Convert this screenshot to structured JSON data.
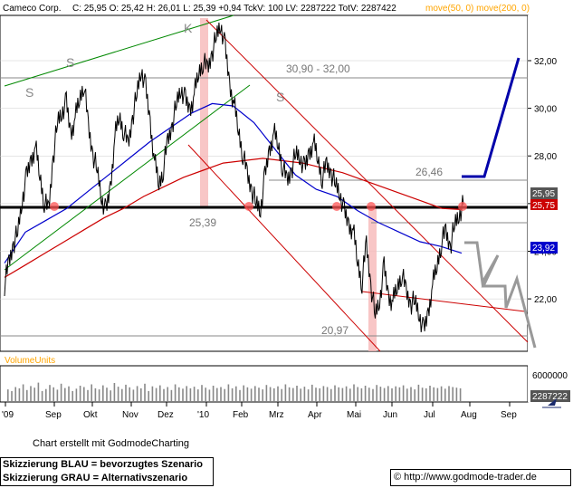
{
  "header": {
    "symbol": "Cameco Corp.",
    "ohlc": "C: 25,95 O: 25,42 H: 26,01 L: 25,39 +0,94 TckV: 100 LV: 2287222 TotV: 2287422",
    "ma_label": "move(50, 0) move(200, 0)"
  },
  "annotations": {
    "zone_top": "30,90 - 32,00",
    "level_2646": "26,46",
    "level_2539": "25,39",
    "level_2097": "20,97",
    "pattern_s1": "S",
    "pattern_s2": "S",
    "pattern_k": "K",
    "pattern_s3": "S"
  },
  "badges": {
    "price_current": "25,95",
    "price_hidden": "25,75",
    "ma50": "23,92"
  },
  "volume": {
    "label": "VolumeUnits",
    "axis_max": "6000000",
    "current": "2287222"
  },
  "footer": {
    "credit": "Chart erstellt mit GodmodeCharting",
    "legend_blue": "Skizzierung BLAU = bevorzugtes Szenario",
    "legend_gray": "Skizzierung GRAU = Alternativszenario",
    "url": "© http://www.godmode-trader.de"
  },
  "colors": {
    "price": "#000000",
    "ma50": "#0000cc",
    "ma200": "#cc0000",
    "channel_upper": "#008800",
    "scenario_blue": "#0000aa",
    "scenario_gray": "#999999",
    "header_ma": "#ffa500",
    "volume_label": "#ffa500"
  },
  "chart_data": {
    "type": "line",
    "title": "",
    "price_axis": {
      "ticks": [
        "32,00",
        "30,00",
        "28,00",
        "26,00",
        "24,00",
        "22,00"
      ],
      "tick_values": [
        32,
        30,
        28,
        26,
        24,
        22
      ],
      "ylim": [
        19.8,
        33.9
      ]
    },
    "time_axis": {
      "ticks": [
        "'09",
        "Sep",
        "Okt",
        "Nov",
        "Dez",
        "'10",
        "Feb",
        "Mrz",
        "Apr",
        "Mai",
        "Jun",
        "Jul",
        "Aug",
        "Sep"
      ]
    },
    "series": [
      {
        "name": "",
        "values": [
          22.6,
          23.5,
          24.3,
          24.8,
          26.2,
          27.1,
          27.8,
          28.4,
          27.2,
          26.1,
          25.7,
          27.9,
          29.4,
          29.9,
          30.2,
          28.9,
          29.6,
          30.4,
          31.1,
          29.2,
          28.1,
          27.4,
          26.3,
          25.6,
          26.7,
          28.8,
          29.7,
          29.1,
          28.4,
          29.6,
          30.6,
          31.7,
          30.8,
          29.4,
          27.8,
          26.8,
          27.5,
          28.6,
          29.3,
          30.2,
          30.9,
          30.3,
          29.9,
          30.6,
          31.5,
          32.0,
          31.6,
          32.3,
          33.0,
          33.6,
          32.5,
          31.0,
          30.2,
          29.1,
          28.1,
          27.2,
          26.6,
          26.0,
          25.8,
          27.1,
          28.2,
          29.0,
          28.5,
          27.6,
          26.9,
          27.4,
          28.1,
          28.0,
          27.4,
          28.1,
          28.6,
          27.9,
          27.1,
          27.6,
          27.3,
          26.8,
          26.5,
          25.6,
          25.1,
          24.9,
          23.6,
          22.7,
          24.3,
          22.6,
          21.3,
          22.0,
          23.3,
          22.1,
          21.9,
          22.5,
          23.1,
          22.3,
          21.8,
          21.9,
          21.4,
          20.6,
          21.4,
          22.6,
          23.4,
          24.4,
          24.8,
          24.2,
          25.1,
          25.6,
          25.95
        ]
      },
      {
        "name": "",
        "values": [
          23.5,
          24.8,
          25.3,
          25.8,
          26.5,
          27.2,
          27.9,
          28.6,
          29.2,
          29.8,
          30.2,
          30.1,
          29.4,
          28.3,
          27.2,
          26.6,
          26.3,
          25.7,
          25.2,
          24.8,
          24.4,
          24.2,
          23.92
        ]
      },
      {
        "name": "",
        "values": [
          22.9,
          23.4,
          23.9,
          24.4,
          24.9,
          25.4,
          25.8,
          26.3,
          26.7,
          27.1,
          27.4,
          27.7,
          27.8,
          27.9,
          27.8,
          27.7,
          27.5,
          27.3,
          27.0,
          26.7,
          26.4,
          26.1,
          25.8,
          25.75
        ]
      }
    ],
    "volume_series": [
      0.35,
      0.3,
      0.42,
      0.38,
      0.5,
      0.33,
      0.45,
      0.4,
      0.55,
      0.3,
      0.36,
      0.48,
      0.41,
      0.34,
      0.52,
      0.39,
      0.44,
      0.3,
      0.37,
      0.46,
      0.42,
      0.33,
      0.5,
      0.38,
      0.35,
      0.47,
      0.4,
      0.32,
      0.54,
      0.43,
      0.36,
      0.49,
      0.41,
      0.34,
      0.45,
      0.38,
      0.52,
      0.3,
      0.44,
      0.39,
      0.47,
      0.36,
      0.42,
      0.33,
      0.5,
      0.41,
      0.37,
      0.45,
      0.38,
      0.43,
      0.35,
      0.48,
      0.4,
      0.34,
      0.46,
      0.39,
      0.42,
      0.36,
      0.5,
      0.38,
      0.44,
      0.33,
      0.47,
      0.41,
      0.37,
      0.45,
      0.4,
      0.35,
      0.48,
      0.42,
      0.38,
      0.44,
      0.36,
      0.5,
      0.41,
      0.39,
      0.46,
      0.37,
      0.43,
      0.35,
      0.49,
      0.4,
      0.38,
      0.45,
      0.42,
      0.36,
      0.47,
      0.41,
      0.39,
      0.44,
      0.37,
      0.5,
      0.42,
      0.38,
      0.46,
      0.4,
      0.36,
      0.48,
      0.43,
      0.39,
      0.45,
      0.38,
      0.44,
      0.41,
      0.47,
      0.37,
      0.42,
      0.35,
      0.49,
      0.4,
      0.38,
      0.46,
      0.41,
      0.39,
      0.44,
      0.37,
      0.45,
      0.42,
      0.4,
      0.38
    ],
    "volume_axis_max": 6000000,
    "grid": true
  }
}
